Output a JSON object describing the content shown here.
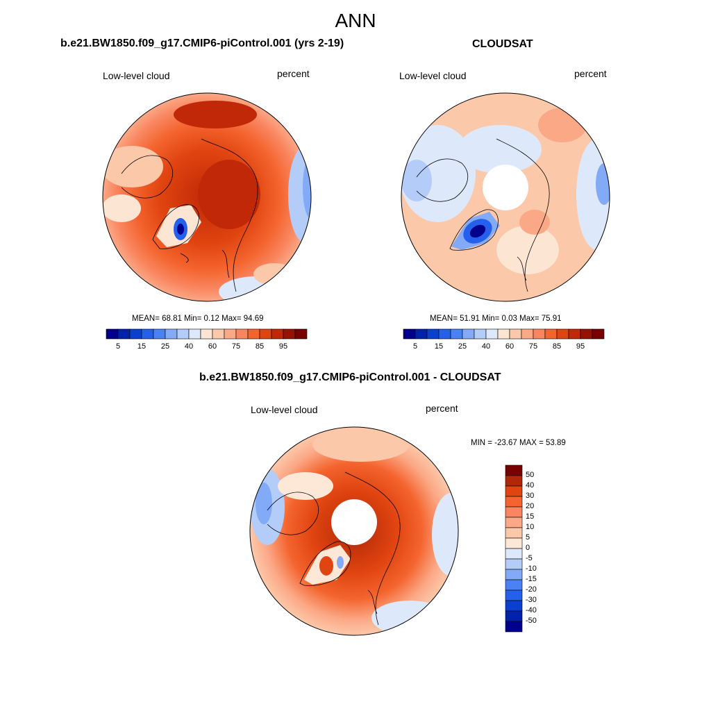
{
  "figure": {
    "title": "ANN"
  },
  "palette": {
    "abs": [
      "#00008c",
      "#0022aa",
      "#0a40d0",
      "#2460ec",
      "#4a82f4",
      "#82aaf6",
      "#b4ccf8",
      "#dde8fa",
      "#fde5d4",
      "#fcc8aa",
      "#fba886",
      "#f98660",
      "#f4642e",
      "#e04410",
      "#c02808",
      "#961204",
      "#780200"
    ],
    "diff": [
      "#780200",
      "#b02808",
      "#e04410",
      "#f4642e",
      "#f98660",
      "#fba886",
      "#fcc8aa",
      "#fde8d8",
      "#dde8fa",
      "#b4ccf8",
      "#82aaf6",
      "#4a82f4",
      "#2460ec",
      "#0a40d0",
      "#0022aa",
      "#00008c"
    ]
  },
  "panels": [
    {
      "title": "b.e21.BW1850.f09_g17.CMIP6-piControl.001 (yrs 2-19)",
      "left_label": "Low-level cloud",
      "right_label": "percent",
      "stats": "MEAN=  68.81  Min=   0.12  Max=  94.69",
      "colorbar_ticks": [
        "5",
        "15",
        "25",
        "40",
        "60",
        "75",
        "85",
        "95"
      ]
    },
    {
      "title": "CLOUDSAT",
      "left_label": "Low-level cloud",
      "right_label": "percent",
      "stats": "MEAN=  51.91  Min=   0.03  Max=  75.91",
      "colorbar_ticks": [
        "5",
        "15",
        "25",
        "40",
        "60",
        "75",
        "85",
        "95"
      ]
    },
    {
      "title": "b.e21.BW1850.f09_g17.CMIP6-piControl.001 - CLOUDSAT",
      "left_label": "Low-level cloud",
      "right_label": "percent",
      "stats": "MIN = -23.67 MAX =  53.89",
      "colorbar_ticks": [
        "50",
        "40",
        "30",
        "20",
        "15",
        "10",
        "5",
        "0",
        "-5",
        "-10",
        "-15",
        "-20",
        "-30",
        "-40",
        "-50"
      ]
    }
  ]
}
